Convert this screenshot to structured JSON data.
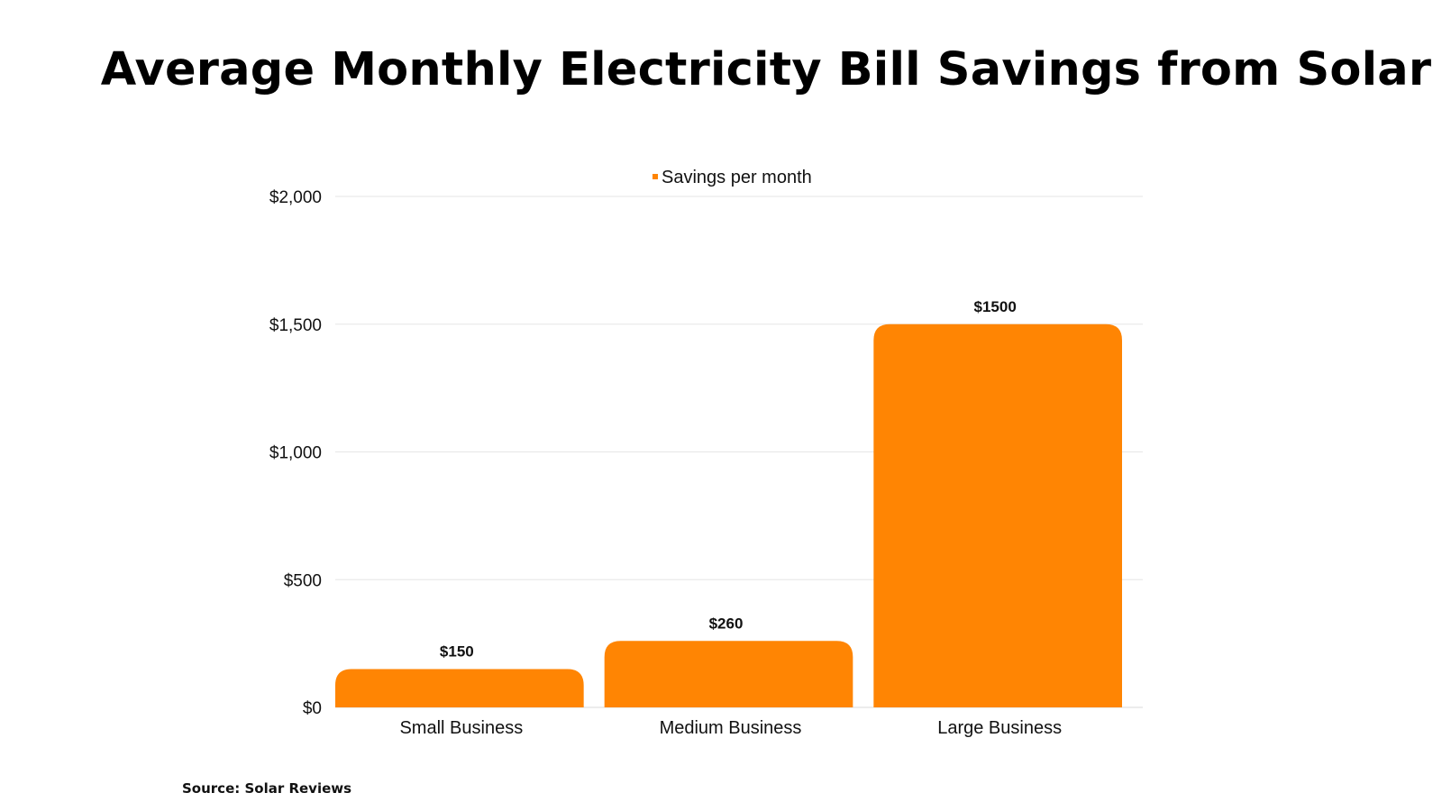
{
  "chart_data": {
    "type": "bar",
    "title": "Average Monthly Electricity Bill Savings from Solar",
    "categories": [
      "Small Business",
      "Medium Business",
      "Large Business"
    ],
    "series": [
      {
        "name": "Savings per month",
        "values": [
          150,
          260,
          1500
        ],
        "data_labels": [
          "$150",
          "$260",
          "$1500"
        ]
      }
    ],
    "xlabel": "",
    "ylabel": "",
    "ylim": [
      0,
      2000
    ],
    "yticks": [
      0,
      500,
      1000,
      1500,
      2000
    ],
    "ytick_labels": [
      "$0",
      "$500",
      "$1,000",
      "$1,500",
      "$2,000"
    ],
    "grid": true,
    "legend_position": "top-center",
    "colors": {
      "bar": "#FF8503",
      "grid": "#E6E6E6",
      "text": "#111111"
    }
  },
  "source": "Source: Solar Reviews"
}
